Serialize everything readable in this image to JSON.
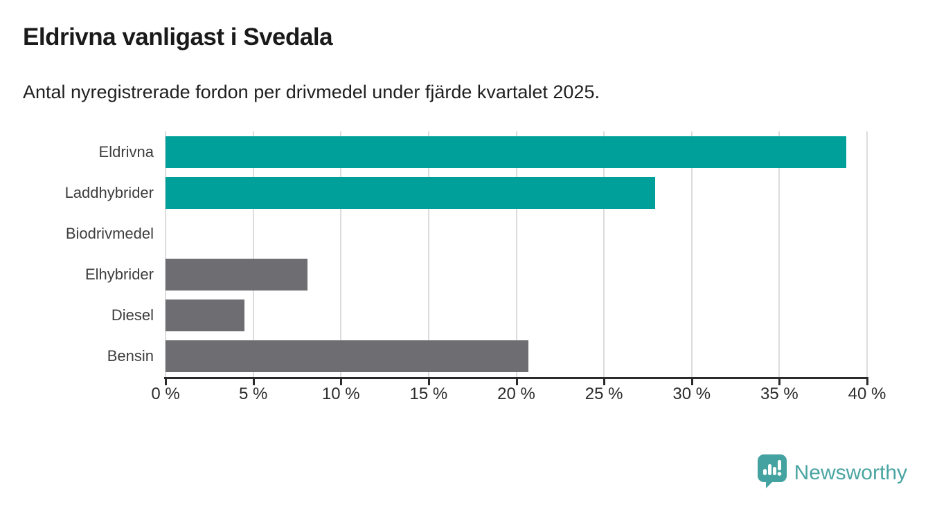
{
  "header": {
    "title": "Eldrivna vanligast i Svedala",
    "subtitle": "Antal nyregistrerade fordon per drivmedel under fjärde kvartalet 2025."
  },
  "chart_data": {
    "type": "bar",
    "orientation": "horizontal",
    "title": "Eldrivna vanligast i Svedala",
    "subtitle": "Antal nyregistrerade fordon per drivmedel under fjärde kvartalet 2025.",
    "categories": [
      "Eldrivna",
      "Laddhybrider",
      "Biodrivmedel",
      "Elhybrider",
      "Diesel",
      "Bensin"
    ],
    "values": [
      38.8,
      27.9,
      0,
      8.1,
      4.5,
      20.7
    ],
    "unit": "%",
    "bar_colors": [
      "#00a09a",
      "#00a09a",
      "#6e6d72",
      "#6e6d72",
      "#6e6d72",
      "#6e6d72"
    ],
    "xlabel": "",
    "ylabel": "",
    "xlim": [
      0,
      40
    ],
    "x_ticks": [
      0,
      5,
      10,
      15,
      20,
      25,
      30,
      35,
      40
    ],
    "x_tick_labels": [
      "0 %",
      "5 %",
      "10 %",
      "15 %",
      "20 %",
      "25 %",
      "30 %",
      "35 %",
      "40 %"
    ],
    "grid": true,
    "legend": false
  },
  "colors": {
    "accent_teal": "#00a09a",
    "neutral_gray": "#6e6d72",
    "gridline": "#dcdcdc",
    "axis": "#2b2b2b",
    "logo_teal": "#44a3a0"
  },
  "footer": {
    "brand": "Newsworthy",
    "logo_icon": "newsworthy-badge-icon"
  }
}
